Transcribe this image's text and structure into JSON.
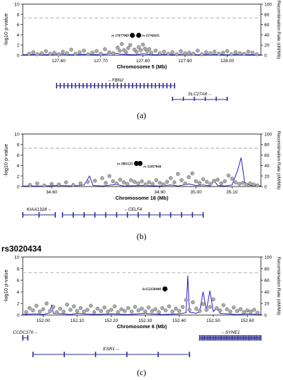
{
  "chart_data": [
    {
      "type": "scatter",
      "panel_label": "(a)",
      "title": "",
      "xlabel": "Chromosome 5 (Mb)",
      "ylabel": "-log10 p-value",
      "y2label": "Recombination Rate (cM/Mb)",
      "xlim": [
        127.515,
        128.08
      ],
      "ylim": [
        0,
        10
      ],
      "y2lim": [
        0,
        100
      ],
      "xticks": [
        "127.60",
        "127.70",
        "127.80",
        "127.90",
        "128.00"
      ],
      "xtick_values": [
        127.6,
        127.7,
        127.8,
        127.9,
        128.0
      ],
      "yticks": [
        "0",
        "2",
        "4",
        "6",
        "8",
        "10"
      ],
      "y2ticks": [
        "0",
        "20",
        "40",
        "60",
        "80",
        "100"
      ],
      "threshold": 7.3,
      "highlighted": [
        {
          "label": "rs 17677069",
          "x": 127.775,
          "y": 3.9
        },
        {
          "label": "rs 11742635",
          "x": 127.79,
          "y": 3.9
        }
      ],
      "points": [
        [
          127.53,
          0.3
        ],
        [
          127.54,
          0.6
        ],
        [
          127.55,
          0.2
        ],
        [
          127.56,
          0.4
        ],
        [
          127.57,
          0.8
        ],
        [
          127.58,
          0.3
        ],
        [
          127.59,
          0.5
        ],
        [
          127.6,
          0.2
        ],
        [
          127.61,
          0.7
        ],
        [
          127.62,
          0.4
        ],
        [
          127.63,
          1.1
        ],
        [
          127.64,
          0.3
        ],
        [
          127.65,
          0.6
        ],
        [
          127.66,
          0.9
        ],
        [
          127.67,
          0.2
        ],
        [
          127.68,
          0.5
        ],
        [
          127.69,
          0.8
        ],
        [
          127.7,
          0.3
        ],
        [
          127.71,
          1.2
        ],
        [
          127.72,
          0.6
        ],
        [
          127.73,
          0.4
        ],
        [
          127.74,
          1.5
        ],
        [
          127.745,
          0.9
        ],
        [
          127.75,
          2.2
        ],
        [
          127.755,
          1.0
        ],
        [
          127.76,
          0.6
        ],
        [
          127.765,
          1.4
        ],
        [
          127.77,
          2.0
        ],
        [
          127.78,
          1.1
        ],
        [
          127.785,
          0.7
        ],
        [
          127.79,
          1.6
        ],
        [
          127.795,
          1.0
        ],
        [
          127.8,
          2.1
        ],
        [
          127.805,
          1.3
        ],
        [
          127.81,
          0.8
        ],
        [
          127.815,
          1.2
        ],
        [
          127.82,
          0.5
        ],
        [
          127.83,
          0.9
        ],
        [
          127.84,
          0.4
        ],
        [
          127.85,
          0.7
        ],
        [
          127.86,
          0.3
        ],
        [
          127.87,
          0.6
        ],
        [
          127.88,
          0.2
        ],
        [
          127.89,
          0.8
        ],
        [
          127.9,
          0.4
        ],
        [
          127.91,
          0.5
        ],
        [
          127.92,
          0.3
        ],
        [
          127.93,
          0.9
        ],
        [
          127.94,
          0.2
        ],
        [
          127.95,
          0.6
        ],
        [
          127.96,
          0.4
        ],
        [
          127.97,
          0.7
        ],
        [
          127.98,
          0.3
        ],
        [
          127.99,
          0.5
        ],
        [
          128.0,
          0.8
        ],
        [
          128.01,
          0.2
        ],
        [
          128.02,
          0.6
        ],
        [
          128.03,
          0.4
        ],
        [
          128.04,
          0.3
        ],
        [
          128.05,
          0.7
        ],
        [
          128.06,
          0.5
        ],
        [
          128.07,
          0.2
        ]
      ],
      "recomb": [
        [
          127.515,
          1
        ],
        [
          127.55,
          2
        ],
        [
          127.58,
          1
        ],
        [
          127.6,
          3
        ],
        [
          127.63,
          1
        ],
        [
          127.66,
          2
        ],
        [
          127.7,
          1
        ],
        [
          127.73,
          4
        ],
        [
          127.75,
          2
        ],
        [
          127.78,
          1
        ],
        [
          127.8,
          3
        ],
        [
          127.83,
          1
        ],
        [
          127.85,
          2
        ],
        [
          127.88,
          1
        ],
        [
          127.9,
          3
        ],
        [
          127.93,
          1
        ],
        [
          127.96,
          2
        ],
        [
          128.0,
          1
        ],
        [
          128.03,
          2
        ],
        [
          128.06,
          1
        ],
        [
          128.08,
          1
        ]
      ],
      "genes": [
        {
          "name": "FBN2",
          "label": "←FBN2",
          "start": 127.595,
          "end": 127.875,
          "row": 0,
          "exons": 32
        },
        {
          "name": "SLC27A6",
          "label": "SLC27A6→",
          "start": 127.87,
          "end": 128.0,
          "row": 1,
          "exons": 6
        }
      ]
    },
    {
      "type": "scatter",
      "panel_label": "(b)",
      "title": "",
      "xlabel": "Chromosome 18 (Mb)",
      "ylabel": "-log10 p-value",
      "y2label": "Recombination Rate (cM/Mb)",
      "xlim": [
        34.52,
        35.18
      ],
      "ylim": [
        0,
        10
      ],
      "y2lim": [
        0,
        100
      ],
      "xticks": [
        "34.60",
        "34.90",
        "35.00",
        "35.10"
      ],
      "xtick_values": [
        34.6,
        34.9,
        35.0,
        35.1
      ],
      "yticks": [
        "0",
        "2",
        "4",
        "6",
        "8",
        "10"
      ],
      "y2ticks": [
        "0",
        "20",
        "40",
        "60",
        "80",
        "100"
      ],
      "threshold": 7.3,
      "highlighted": [
        {
          "label": "rs 2861221",
          "x": 34.835,
          "y": 4.4
        },
        {
          "label": "rs 12457644",
          "x": 34.845,
          "y": 4.4
        }
      ],
      "points": [
        [
          34.54,
          0.3
        ],
        [
          34.56,
          0.6
        ],
        [
          34.58,
          0.2
        ],
        [
          34.6,
          0.5
        ],
        [
          34.62,
          0.4
        ],
        [
          34.64,
          0.8
        ],
        [
          34.66,
          0.3
        ],
        [
          34.68,
          0.6
        ],
        [
          34.7,
          0.9
        ],
        [
          34.72,
          1.1
        ],
        [
          34.74,
          1.6
        ],
        [
          34.75,
          0.7
        ],
        [
          34.76,
          2.0
        ],
        [
          34.77,
          1.0
        ],
        [
          34.78,
          0.6
        ],
        [
          34.79,
          1.3
        ],
        [
          34.8,
          0.8
        ],
        [
          34.81,
          0.5
        ],
        [
          34.82,
          1.2
        ],
        [
          34.83,
          0.9
        ],
        [
          34.84,
          0.6
        ],
        [
          34.85,
          1.0
        ],
        [
          34.86,
          0.4
        ],
        [
          34.87,
          0.8
        ],
        [
          34.88,
          0.5
        ],
        [
          34.89,
          1.2
        ],
        [
          34.9,
          0.7
        ],
        [
          34.91,
          0.4
        ],
        [
          34.92,
          0.9
        ],
        [
          34.93,
          1.6
        ],
        [
          34.94,
          0.8
        ],
        [
          34.95,
          2.4
        ],
        [
          34.96,
          1.2
        ],
        [
          34.97,
          0.6
        ],
        [
          34.98,
          1.8
        ],
        [
          34.99,
          2.5
        ],
        [
          35.0,
          1.0
        ],
        [
          35.01,
          0.7
        ],
        [
          35.02,
          1.4
        ],
        [
          35.03,
          0.9
        ],
        [
          35.04,
          0.5
        ],
        [
          35.05,
          1.1
        ],
        [
          35.06,
          1.3
        ],
        [
          35.07,
          0.6
        ],
        [
          35.08,
          1.0
        ],
        [
          35.09,
          2.1
        ],
        [
          35.1,
          1.5
        ],
        [
          35.11,
          0.8
        ],
        [
          35.12,
          0.5
        ],
        [
          35.13,
          0.7
        ],
        [
          35.14,
          0.3
        ],
        [
          35.15,
          0.6
        ],
        [
          35.16,
          0.4
        ],
        [
          35.17,
          0.2
        ]
      ],
      "recomb": [
        [
          34.52,
          1
        ],
        [
          34.58,
          1
        ],
        [
          34.62,
          2
        ],
        [
          34.66,
          1
        ],
        [
          34.69,
          3
        ],
        [
          34.705,
          20
        ],
        [
          34.715,
          2
        ],
        [
          34.74,
          1
        ],
        [
          34.78,
          4
        ],
        [
          34.8,
          1
        ],
        [
          34.85,
          2
        ],
        [
          34.9,
          1
        ],
        [
          34.93,
          3
        ],
        [
          34.95,
          1
        ],
        [
          34.98,
          5
        ],
        [
          35.0,
          2
        ],
        [
          35.02,
          3
        ],
        [
          35.04,
          1
        ],
        [
          35.05,
          12
        ],
        [
          35.06,
          2
        ],
        [
          35.08,
          1
        ],
        [
          35.1,
          3
        ],
        [
          35.115,
          30
        ],
        [
          35.125,
          55
        ],
        [
          35.135,
          8
        ],
        [
          35.15,
          2
        ],
        [
          35.18,
          1
        ]
      ],
      "genes": [
        {
          "name": "KIAA1328",
          "label": "KIAA1328→",
          "start": 34.52,
          "end": 34.61,
          "row": 0,
          "exons": 3
        },
        {
          "name": "CELF4",
          "label": "←CELF4",
          "start": 34.63,
          "end": 35.02,
          "row": 0,
          "exons": 14
        }
      ]
    },
    {
      "type": "scatter",
      "panel_label": "(c)",
      "title": "",
      "xlabel": "Chromosome 6 (Mb)",
      "ylabel": "-log10 p-value",
      "y2label": "Recombination Rate (cM/Mb)",
      "xlim": [
        151.94,
        152.64
      ],
      "ylim": [
        0,
        10
      ],
      "y2lim": [
        0,
        100
      ],
      "xticks": [
        "152.00",
        "152.10",
        "152.20",
        "152.30",
        "152.40",
        "152.50",
        "152.60"
      ],
      "xtick_values": [
        152.0,
        152.1,
        152.2,
        152.3,
        152.4,
        152.5,
        152.6
      ],
      "yticks": [
        "0",
        "2",
        "4",
        "6",
        "8",
        "10"
      ],
      "y2ticks": [
        "0",
        "20",
        "40",
        "60",
        "80",
        "100"
      ],
      "threshold": 7.3,
      "highlighted": [
        {
          "label": "6:152358940",
          "x": 152.358,
          "y": 4.5
        }
      ],
      "points": [
        [
          151.95,
          0.5
        ],
        [
          151.96,
          1.2
        ],
        [
          151.97,
          0.8
        ],
        [
          151.98,
          1.6
        ],
        [
          151.99,
          0.6
        ],
        [
          152.0,
          1.0
        ],
        [
          152.01,
          2.0
        ],
        [
          152.02,
          0.7
        ],
        [
          152.03,
          1.4
        ],
        [
          152.04,
          0.5
        ],
        [
          152.05,
          1.1
        ],
        [
          152.06,
          0.6
        ],
        [
          152.07,
          1.8
        ],
        [
          152.08,
          0.9
        ],
        [
          152.09,
          1.5
        ],
        [
          152.1,
          0.7
        ],
        [
          152.11,
          1.2
        ],
        [
          152.12,
          0.6
        ],
        [
          152.13,
          0.9
        ],
        [
          152.14,
          1.6
        ],
        [
          152.15,
          0.5
        ],
        [
          152.16,
          1.1
        ],
        [
          152.17,
          0.7
        ],
        [
          152.18,
          1.3
        ],
        [
          152.19,
          0.6
        ],
        [
          152.2,
          0.9
        ],
        [
          152.21,
          1.5
        ],
        [
          152.22,
          0.5
        ],
        [
          152.23,
          1.0
        ],
        [
          152.24,
          0.7
        ],
        [
          152.25,
          1.2
        ],
        [
          152.26,
          0.6
        ],
        [
          152.27,
          1.4
        ],
        [
          152.28,
          0.8
        ],
        [
          152.29,
          1.1
        ],
        [
          152.3,
          0.6
        ],
        [
          152.31,
          1.3
        ],
        [
          152.32,
          0.7
        ],
        [
          152.33,
          1.0
        ],
        [
          152.34,
          0.5
        ],
        [
          152.35,
          1.2
        ],
        [
          152.36,
          0.8
        ],
        [
          152.37,
          1.5
        ],
        [
          152.38,
          0.6
        ],
        [
          152.39,
          1.1
        ],
        [
          152.4,
          0.7
        ],
        [
          152.41,
          1.4
        ],
        [
          152.42,
          2.6
        ],
        [
          152.43,
          0.9
        ],
        [
          152.44,
          2.2
        ],
        [
          152.45,
          1.1
        ],
        [
          152.46,
          0.7
        ],
        [
          152.47,
          1.9
        ],
        [
          152.48,
          0.9
        ],
        [
          152.49,
          1.4
        ],
        [
          152.5,
          2.7
        ],
        [
          152.51,
          1.2
        ],
        [
          152.52,
          0.8
        ],
        [
          152.53,
          1.7
        ],
        [
          152.54,
          1.0
        ],
        [
          152.55,
          0.6
        ],
        [
          152.56,
          1.3
        ],
        [
          152.57,
          0.7
        ],
        [
          152.58,
          1.0
        ],
        [
          152.59,
          0.5
        ],
        [
          152.6,
          0.8
        ],
        [
          152.61,
          0.6
        ],
        [
          152.62,
          0.9
        ],
        [
          152.63,
          0.4
        ]
      ],
      "recomb": [
        [
          151.94,
          1
        ],
        [
          151.98,
          2
        ],
        [
          152.0,
          1
        ],
        [
          152.02,
          4
        ],
        [
          152.025,
          18
        ],
        [
          152.03,
          3
        ],
        [
          152.06,
          2
        ],
        [
          152.08,
          1
        ],
        [
          152.1,
          3
        ],
        [
          152.15,
          1
        ],
        [
          152.2,
          2
        ],
        [
          152.25,
          1
        ],
        [
          152.3,
          3
        ],
        [
          152.35,
          1
        ],
        [
          152.4,
          2
        ],
        [
          152.42,
          4
        ],
        [
          152.425,
          68
        ],
        [
          152.43,
          5
        ],
        [
          152.45,
          3
        ],
        [
          152.46,
          6
        ],
        [
          152.47,
          40
        ],
        [
          152.48,
          8
        ],
        [
          152.49,
          42
        ],
        [
          152.5,
          6
        ],
        [
          152.51,
          12
        ],
        [
          152.52,
          3
        ],
        [
          152.54,
          2
        ],
        [
          152.57,
          1
        ],
        [
          152.6,
          2
        ],
        [
          152.64,
          1
        ]
      ],
      "genes": [
        {
          "name": "CCDC170",
          "label": "CCDC170→",
          "start": 151.94,
          "end": 151.955,
          "row": 0,
          "exons": 2
        },
        {
          "name": "SYNE1",
          "label": "←SYNE1",
          "start": 152.46,
          "end": 152.64,
          "row": 0,
          "exons": 40
        },
        {
          "name": "ESR1",
          "label": "ESR1→",
          "start": 151.97,
          "end": 152.43,
          "row": 1,
          "exons": 6
        }
      ]
    }
  ],
  "section_title": "rs3020434",
  "colors": {
    "point": "#aaaaaa",
    "point_stroke": "#666666",
    "recomb": "#1a1ad0",
    "threshold": "#bbbbbb",
    "gene": "#2a2a90",
    "highlight": "#000000"
  }
}
